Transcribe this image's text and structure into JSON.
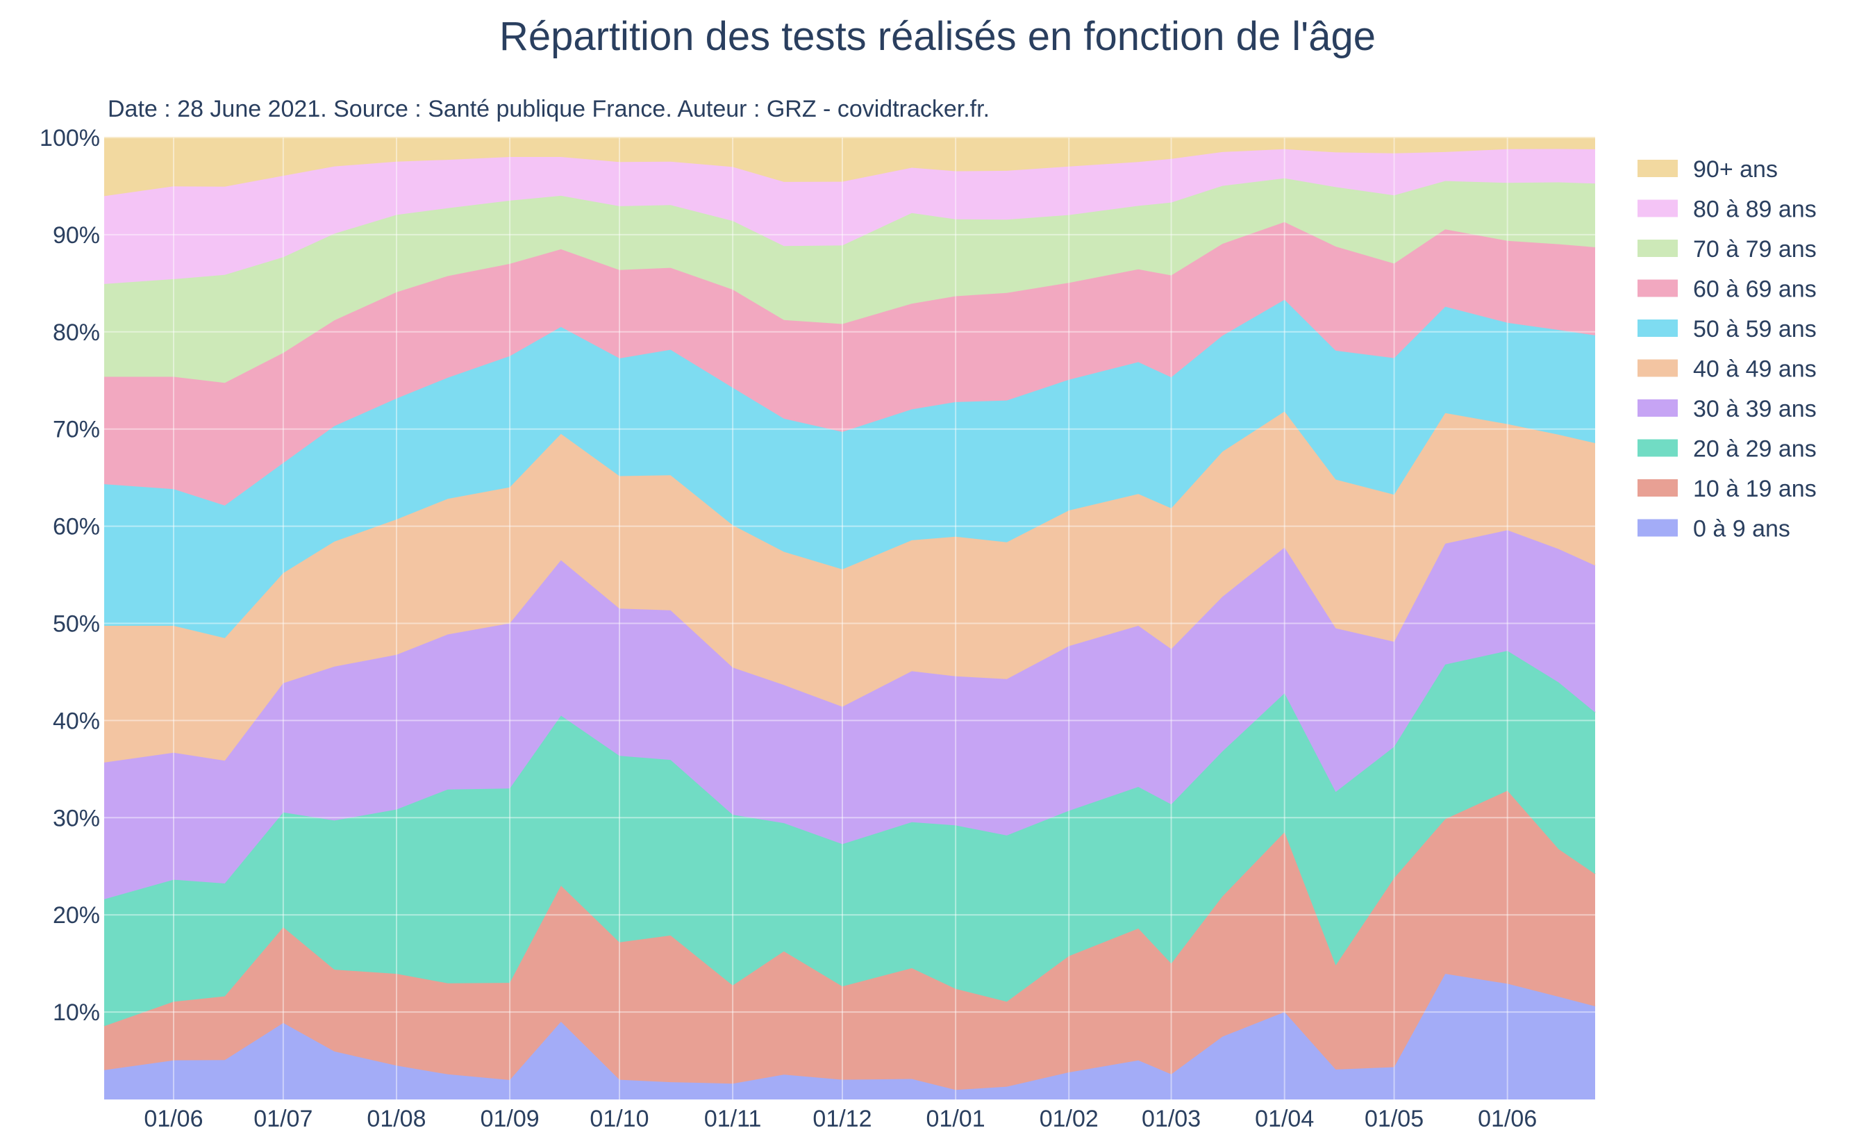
{
  "chart_data": {
    "type": "area",
    "stacked": true,
    "normalized": true,
    "title": "Répartition des tests  réalisés en fonction de l'âge",
    "subtitle": "Date : 28 June 2021. Source : Santé publique France. Auteur : GRZ - covidtracker.fr.",
    "x_range": [
      "2020-05-13",
      "2021-06-25"
    ],
    "y_range": [
      0.01,
      1.0
    ],
    "y_ticks": [
      "10%",
      "20%",
      "30%",
      "40%",
      "50%",
      "60%",
      "70%",
      "80%",
      "90%",
      "100%"
    ],
    "x_ticks": [
      {
        "date": "2020-06-01",
        "label": "01/06"
      },
      {
        "date": "2020-07-01",
        "label": "01/07"
      },
      {
        "date": "2020-08-01",
        "label": "01/08"
      },
      {
        "date": "2020-09-01",
        "label": "01/09"
      },
      {
        "date": "2020-10-01",
        "label": "01/10"
      },
      {
        "date": "2020-11-01",
        "label": "01/11"
      },
      {
        "date": "2020-12-01",
        "label": "01/12"
      },
      {
        "date": "2021-01-01",
        "label": "01/01"
      },
      {
        "date": "2021-02-01",
        "label": "01/02"
      },
      {
        "date": "2021-03-01",
        "label": "01/03"
      },
      {
        "date": "2021-04-01",
        "label": "01/04"
      },
      {
        "date": "2021-05-01",
        "label": "01/05"
      },
      {
        "date": "2021-06-01",
        "label": "01/06"
      }
    ],
    "x": [
      "2020-05-13",
      "2020-06-01",
      "2020-06-15",
      "2020-07-01",
      "2020-07-15",
      "2020-08-01",
      "2020-08-15",
      "2020-09-01",
      "2020-09-15",
      "2020-10-01",
      "2020-10-15",
      "2020-11-01",
      "2020-11-15",
      "2020-12-01",
      "2020-12-20",
      "2021-01-01",
      "2021-01-15",
      "2021-02-01",
      "2021-02-20",
      "2021-03-01",
      "2021-03-15",
      "2021-04-01",
      "2021-04-15",
      "2021-05-01",
      "2021-05-15",
      "2021-06-01",
      "2021-06-15",
      "2021-06-25"
    ],
    "series": [
      {
        "name": "0 à 9 ans",
        "color": "#a3acf7",
        "values": [
          4.0,
          5.0,
          5.0,
          9.0,
          6.0,
          4.5,
          3.6,
          3.0,
          9.0,
          3.0,
          2.8,
          2.6,
          3.5,
          3.0,
          3.0,
          2.0,
          2.3,
          3.8,
          5.0,
          3.6,
          7.5,
          10.0,
          4.0,
          4.0,
          14.0,
          13.0,
          11.8,
          10.5
        ]
      },
      {
        "name": "10 à 19 ans",
        "color": "#e8a094",
        "values": [
          4.5,
          6.0,
          6.5,
          10.0,
          8.5,
          9.5,
          9.4,
          10.0,
          14.0,
          14.0,
          15.2,
          10.0,
          12.5,
          9.5,
          11.0,
          10.5,
          8.7,
          12.0,
          13.5,
          11.4,
          14.5,
          18.5,
          10.5,
          18.0,
          16.0,
          20.0,
          15.5,
          13.5
        ]
      },
      {
        "name": "20 à 29 ans",
        "color": "#71dcc4",
        "values": [
          13.0,
          12.5,
          11.5,
          12.0,
          15.5,
          17.0,
          20.0,
          20.0,
          17.5,
          19.0,
          18.2,
          17.4,
          13.0,
          14.5,
          14.5,
          17.0,
          17.0,
          15.0,
          14.5,
          16.4,
          15.0,
          14.3,
          17.5,
          12.5,
          16.0,
          14.5,
          17.5,
          16.5
        ]
      },
      {
        "name": "30 à 39 ans",
        "color": "#c6a4f4",
        "values": [
          14.0,
          13.0,
          12.5,
          13.5,
          16.0,
          16.0,
          16.0,
          17.0,
          16.0,
          15.0,
          15.5,
          15.0,
          14.0,
          14.0,
          15.0,
          15.5,
          16.0,
          17.0,
          16.5,
          16.0,
          16.0,
          15.0,
          16.5,
          10.0,
          12.5,
          12.5,
          14.0,
          15.0
        ]
      },
      {
        "name": "40 à 49 ans",
        "color": "#f3c5a2",
        "values": [
          14.0,
          13.0,
          12.5,
          11.5,
          13.0,
          14.0,
          14.0,
          14.0,
          13.0,
          13.5,
          14.0,
          14.5,
          13.5,
          14.0,
          13.0,
          14.5,
          14.0,
          14.0,
          13.5,
          14.5,
          15.0,
          14.0,
          15.0,
          14.0,
          13.5,
          11.0,
          12.0,
          12.5
        ]
      },
      {
        "name": "50 à 59 ans",
        "color": "#7edcf1",
        "values": [
          14.5,
          14.0,
          13.5,
          11.5,
          12.0,
          12.5,
          12.5,
          13.5,
          11.0,
          12.0,
          13.0,
          14.0,
          13.5,
          14.0,
          13.0,
          14.0,
          14.5,
          13.5,
          13.5,
          13.5,
          12.0,
          11.5,
          13.0,
          13.0,
          11.0,
          10.5,
          11.0,
          11.0
        ]
      },
      {
        "name": "60 à 69 ans",
        "color": "#f2a8c0",
        "values": [
          11.0,
          11.5,
          12.5,
          11.5,
          11.0,
          11.0,
          10.5,
          9.5,
          8.0,
          9.0,
          8.5,
          10.0,
          10.0,
          11.0,
          10.5,
          11.0,
          11.0,
          10.0,
          9.5,
          10.5,
          9.5,
          8.0,
          10.5,
          9.0,
          8.0,
          8.5,
          9.0,
          9.0
        ]
      },
      {
        "name": "70 à 79 ans",
        "color": "#cde9b8",
        "values": [
          9.5,
          10.0,
          11.0,
          10.0,
          9.0,
          8.0,
          7.0,
          6.5,
          5.5,
          6.5,
          6.5,
          7.0,
          7.5,
          8.0,
          9.0,
          8.0,
          7.5,
          7.0,
          6.5,
          7.5,
          6.0,
          4.5,
          6.0,
          6.5,
          5.0,
          6.0,
          6.5,
          6.5
        ]
      },
      {
        "name": "80 à 89 ans",
        "color": "#f4c4f6",
        "values": [
          9.0,
          9.5,
          9.0,
          8.5,
          7.0,
          5.5,
          5.0,
          4.5,
          4.0,
          4.5,
          4.5,
          5.5,
          6.5,
          6.5,
          4.5,
          5.0,
          5.0,
          5.0,
          4.5,
          4.5,
          3.5,
          3.0,
          3.5,
          4.0,
          3.0,
          3.5,
          3.5,
          3.5
        ]
      },
      {
        "name": "90+ ans",
        "color": "#f2d9a0",
        "values": [
          6.0,
          5.0,
          5.0,
          4.0,
          3.0,
          2.5,
          2.3,
          2.0,
          2.0,
          2.5,
          2.5,
          3.0,
          4.5,
          4.5,
          3.0,
          3.5,
          3.4,
          3.0,
          2.5,
          2.2,
          1.5,
          1.2,
          1.5,
          1.5,
          1.5,
          1.2,
          1.2,
          1.2
        ]
      }
    ],
    "legend_order": [
      "90+ ans",
      "80 à 89 ans",
      "70 à 79 ans",
      "60 à 69 ans",
      "50 à 59 ans",
      "40 à 49 ans",
      "30 à 39 ans",
      "20 à 29 ans",
      "10 à 19 ans",
      "0 à 9 ans"
    ],
    "legend_position": "right",
    "grid": true
  }
}
